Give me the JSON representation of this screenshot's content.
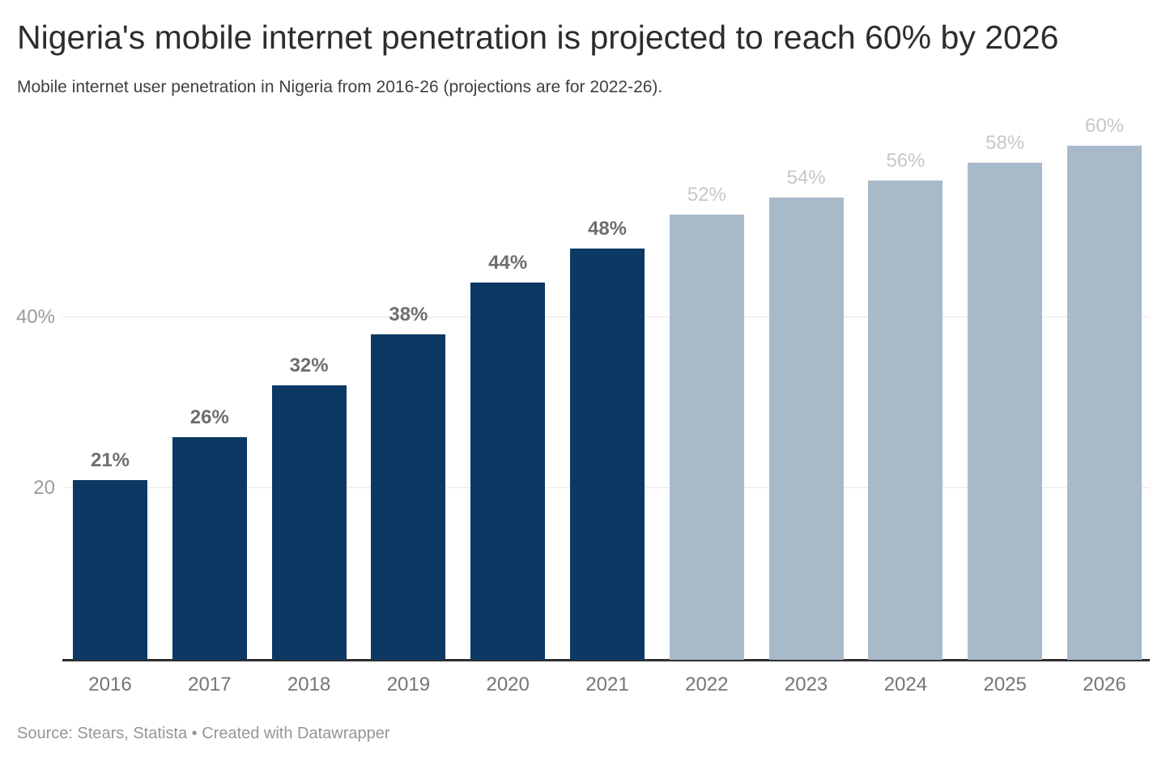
{
  "header": {
    "title": "Nigeria's mobile internet penetration is projected to reach 60% by 2026",
    "subtitle": "Mobile internet user penetration in Nigeria from 2016-26 (projections are for 2022-26)."
  },
  "chart_data": {
    "type": "bar",
    "title": "Nigeria's mobile internet penetration is projected to reach 60% by 2026",
    "subtitle": "Mobile internet user penetration in Nigeria from 2016-26 (projections are for 2022-26).",
    "categories": [
      "2016",
      "2017",
      "2018",
      "2019",
      "2020",
      "2021",
      "2022",
      "2023",
      "2024",
      "2025",
      "2026"
    ],
    "values": [
      21,
      26,
      32,
      38,
      44,
      48,
      52,
      54,
      56,
      58,
      60
    ],
    "value_label_suffix": "%",
    "projected_start_index": 6,
    "xlabel": "",
    "ylabel": "",
    "ylim": [
      0,
      63.8
    ],
    "grid": true,
    "legend_position": "none",
    "y_ticks": [
      {
        "value": 20,
        "label": "20"
      },
      {
        "value": 40,
        "label": "40%"
      }
    ],
    "colors": {
      "actual_bar": "#0c3963",
      "projected_bar": "#a8b9ca",
      "actual_value_label": "#6e6e6e",
      "projected_value_label": "#c7c7c7",
      "gridline": "#e6e6e6",
      "axis_line": "#2f2f2f",
      "x_tick_label": "#757575",
      "y_tick_label": "#9b9b9b"
    }
  },
  "footer": {
    "source": "Source: Stears, Statista • Created with Datawrapper"
  }
}
